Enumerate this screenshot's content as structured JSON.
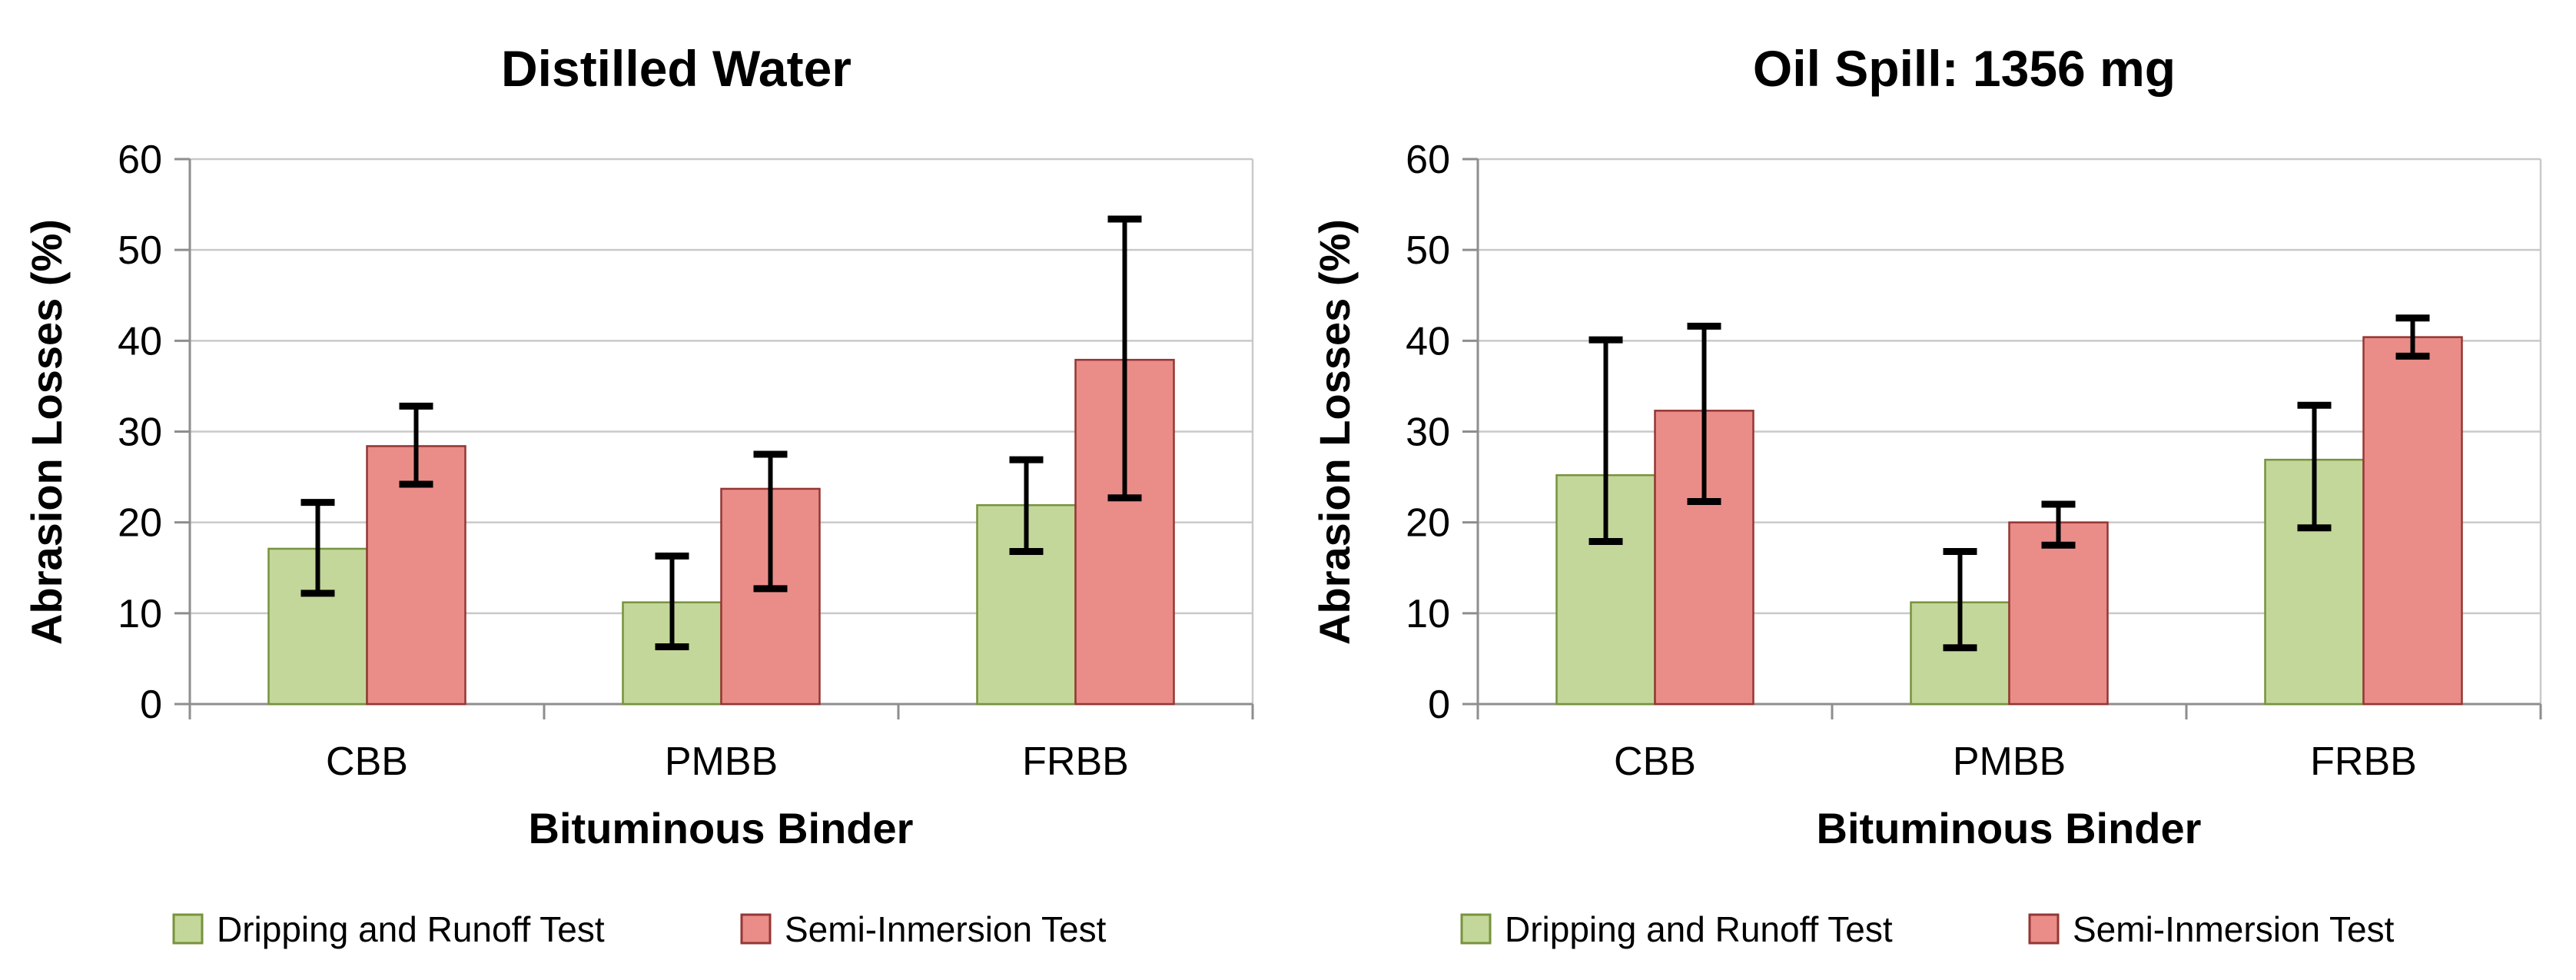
{
  "styles": {
    "background": "#ffffff",
    "grid_color": "#c9c9c9",
    "axis_color": "#8e8e8e",
    "error_bar_color": "#000000",
    "text_color": "#000000"
  },
  "chart_data": [
    {
      "type": "bar",
      "title": "Distilled Water",
      "xlabel": "Bituminous Binder",
      "ylabel": "Abrasion Losses (%)",
      "ylim": [
        0,
        60
      ],
      "ytick_step": 10,
      "grid": true,
      "legend_position": "bottom",
      "categories": [
        "CBB",
        "PMBB",
        "FRBB"
      ],
      "series": [
        {
          "name": "Dripping and Runoff Test",
          "fill": "#c4d79b",
          "stroke": "#77933c",
          "values": [
            17.1,
            11.2,
            21.9
          ],
          "error_low": [
            12.2,
            6.3,
            16.8
          ],
          "error_high": [
            22.2,
            16.3,
            26.9
          ]
        },
        {
          "name": "Semi-Inmersion Test",
          "fill": "#ea8d89",
          "stroke": "#943634",
          "values": [
            28.4,
            23.7,
            37.9
          ],
          "error_low": [
            24.2,
            12.7,
            22.7
          ],
          "error_high": [
            32.8,
            27.5,
            53.4
          ]
        }
      ]
    },
    {
      "type": "bar",
      "title": "Oil Spill: 1356 mg",
      "xlabel": "Bituminous Binder",
      "ylabel": "Abrasion Losses (%)",
      "ylim": [
        0,
        60
      ],
      "ytick_step": 10,
      "grid": true,
      "legend_position": "bottom",
      "categories": [
        "CBB",
        "PMBB",
        "FRBB"
      ],
      "series": [
        {
          "name": "Dripping and Runoff Test",
          "fill": "#c4d79b",
          "stroke": "#77933c",
          "values": [
            25.2,
            11.2,
            26.9
          ],
          "error_low": [
            17.9,
            6.2,
            19.4
          ],
          "error_high": [
            40.1,
            16.8,
            32.9
          ]
        },
        {
          "name": "Semi-Inmersion Test",
          "fill": "#ea8d89",
          "stroke": "#943634",
          "values": [
            32.3,
            20,
            40.4
          ],
          "error_low": [
            22.3,
            17.5,
            38.3
          ],
          "error_high": [
            41.6,
            22,
            42.5
          ]
        }
      ]
    }
  ]
}
